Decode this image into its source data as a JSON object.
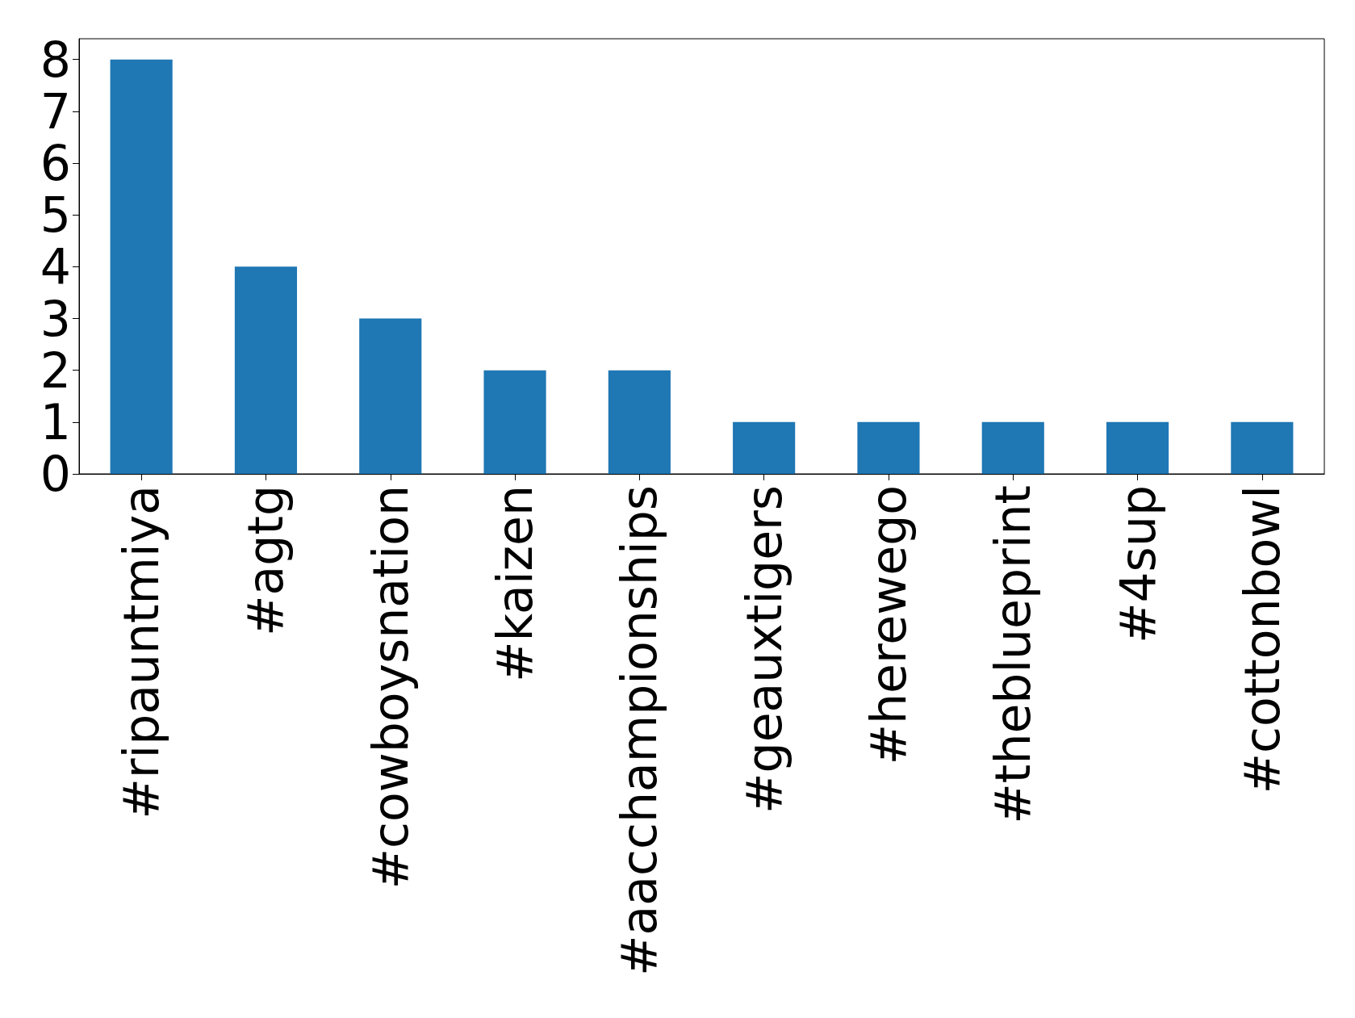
{
  "chart_data": {
    "type": "bar",
    "categories": [
      "#ripauntmiya",
      "#agtg",
      "#cowboysnation",
      "#kaizen",
      "#aacchampionships",
      "#geauxtigers",
      "#herewego",
      "#theblueprint",
      "#4sup",
      "#cottonbowl"
    ],
    "values": [
      8,
      4,
      3,
      2,
      2,
      1,
      1,
      1,
      1,
      1
    ],
    "color": "#1f77b4",
    "ylim": [
      0,
      8.4
    ],
    "yticks": [
      0,
      1,
      2,
      3,
      4,
      5,
      6,
      7,
      8
    ],
    "grid": false
  }
}
